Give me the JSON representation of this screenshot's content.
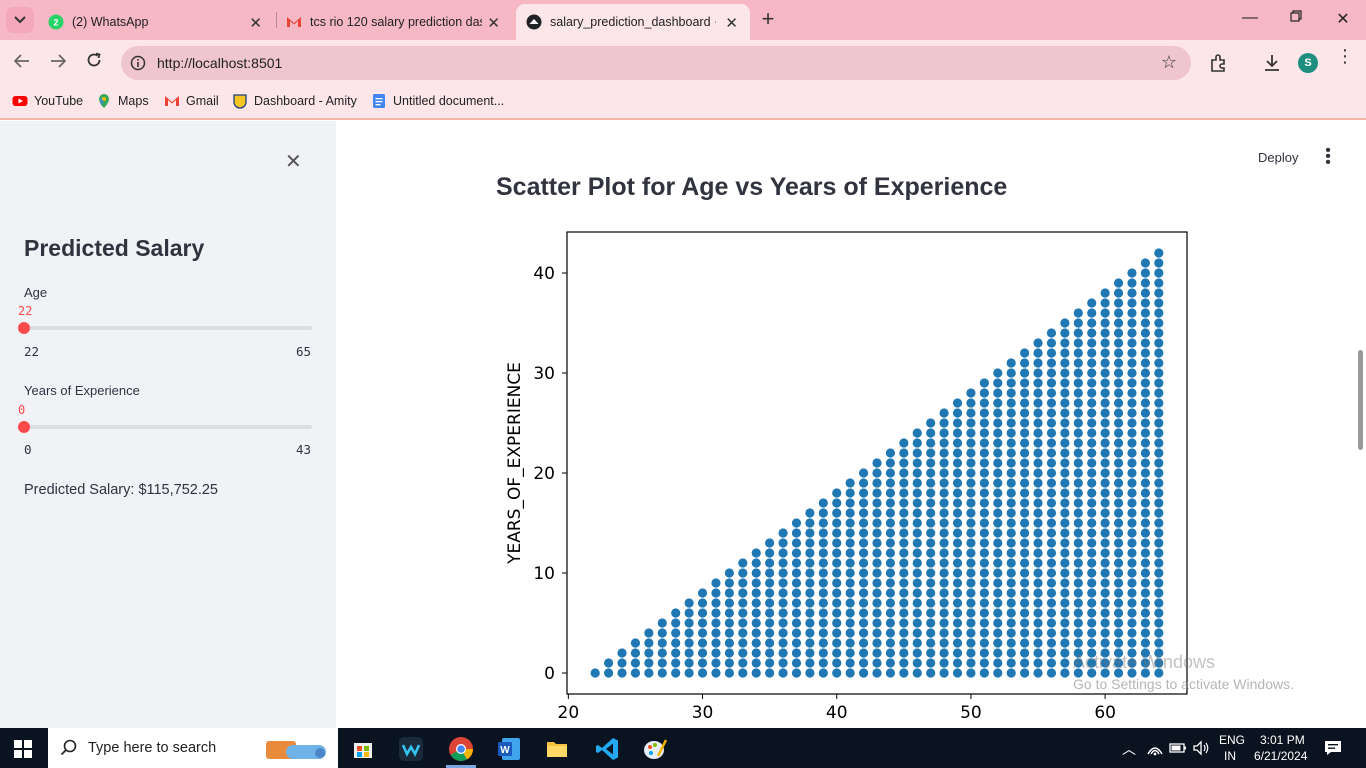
{
  "browser": {
    "tabs": [
      {
        "label": "(2) WhatsApp",
        "icon": "whatsapp-icon",
        "badge": "2"
      },
      {
        "label": "tcs rio 120 salary prediction das",
        "icon": "gmail-icon"
      },
      {
        "label": "salary_prediction_dashboard · S",
        "icon": "streamlit-icon",
        "active": true
      }
    ],
    "url": "http://localhost:8501",
    "profile_initial": "S",
    "bookmarks": [
      {
        "label": "YouTube",
        "icon": "youtube-icon"
      },
      {
        "label": "Maps",
        "icon": "maps-icon"
      },
      {
        "label": "Gmail",
        "icon": "gmail-icon"
      },
      {
        "label": "Dashboard - Amity",
        "icon": "amity-icon"
      },
      {
        "label": "Untitled document...",
        "icon": "docs-icon"
      }
    ]
  },
  "sidebar": {
    "title": "Predicted Salary",
    "age": {
      "label": "Age",
      "value": "22",
      "min": "22",
      "max": "65"
    },
    "experience": {
      "label": "Years of Experience",
      "value": "0",
      "min": "0",
      "max": "43"
    },
    "prediction": "Predicted Salary: $115,752.25"
  },
  "main": {
    "deploy_label": "Deploy",
    "chart_title": "Scatter Plot for Age vs Years of Experience"
  },
  "chart_data": {
    "type": "scatter",
    "title": "Scatter Plot for Age vs Years of Experience",
    "xlabel": "",
    "ylabel": "YEARS_OF_EXPERIENCE",
    "x_range": [
      22,
      64
    ],
    "y_rule": "years of experience from 0 to (age - 22) for each age",
    "xlim": [
      19.9,
      66.1
    ],
    "ylim": [
      -2.1,
      44.1
    ],
    "xticks": [
      20,
      30,
      40,
      50,
      60
    ],
    "yticks": [
      0,
      10,
      20,
      30,
      40
    ],
    "color": "#1f77b4",
    "grid": false
  },
  "watermark": {
    "line1": "Activate Windows",
    "line2": "Go to Settings to activate Windows."
  },
  "taskbar": {
    "search_placeholder": "Type here to search",
    "lang": "ENG",
    "region": "IN",
    "time": "3:01 PM",
    "date": "6/21/2024"
  }
}
